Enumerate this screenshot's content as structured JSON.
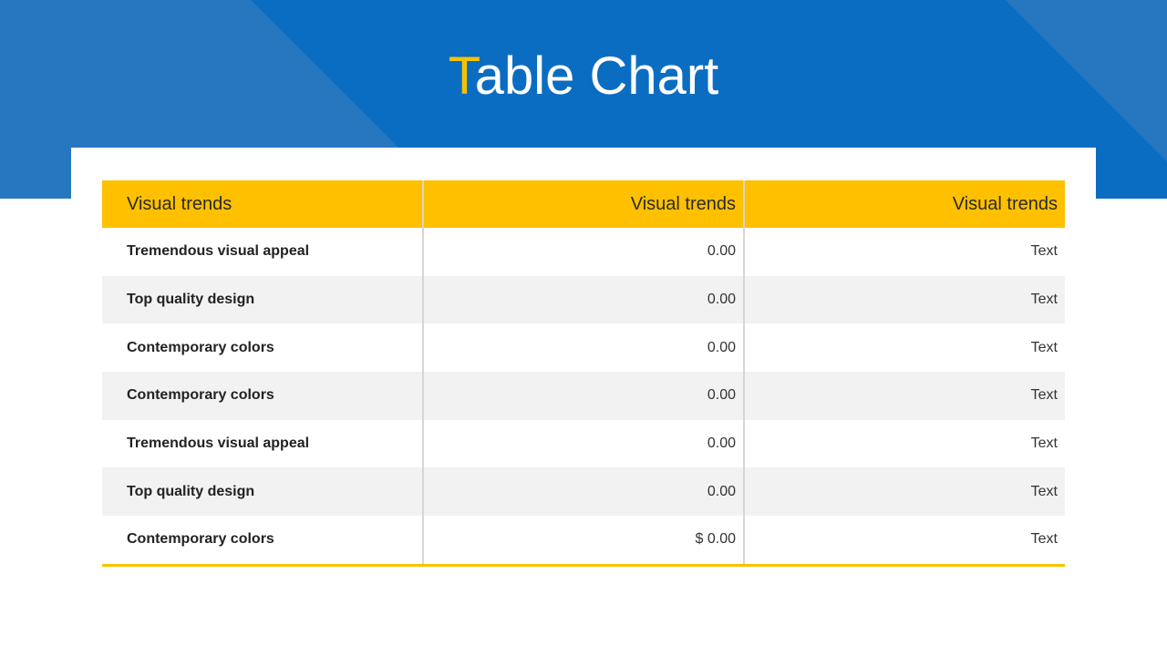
{
  "title": {
    "accent_letter": "T",
    "rest": "able Chart"
  },
  "colors": {
    "band": "#0b6dc2",
    "band_light": "#2777c0",
    "accent": "#ffc000",
    "row_alt": "#f2f2f2"
  },
  "chart_data": {
    "type": "table",
    "columns": [
      "Visual trends",
      "Visual trends",
      "Visual trends"
    ],
    "rows": [
      [
        "Tremendous  visual  appeal",
        "0.00",
        "Text"
      ],
      [
        "Top  quality  design",
        "0.00",
        "Text"
      ],
      [
        "Contemporary  colors",
        "0.00",
        "Text"
      ],
      [
        "Contemporary  colors",
        "0.00",
        "Text"
      ],
      [
        "Tremendous  visual  appeal",
        "0.00",
        "Text"
      ],
      [
        "Top  quality  design",
        "0.00",
        "Text"
      ],
      [
        "Contemporary  colors",
        "$ 0.00",
        "Text"
      ]
    ]
  }
}
